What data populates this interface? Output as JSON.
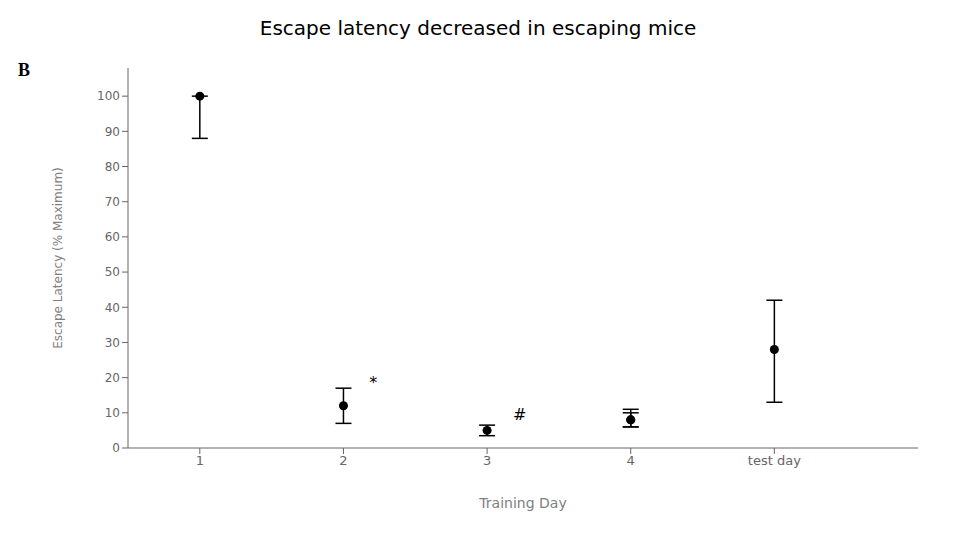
{
  "chart_data": {
    "type": "scatter",
    "title": "Escape latency decreased in escaping mice",
    "panel_label": "B",
    "xlabel": "Training Day",
    "ylabel": "Escape Latency (% Maximum)",
    "series": [
      {
        "color": "#000000",
        "marker": "circle",
        "x": [
          1,
          2,
          3,
          4
        ],
        "values": [
          100,
          12,
          5,
          8
        ],
        "yerr_lower": [
          12,
          5,
          1.5,
          2
        ],
        "yerr_upper": [
          0,
          5,
          1.5,
          3
        ]
      },
      {
        "color": "#000000",
        "marker": "circle",
        "x": [
          4,
          5
        ],
        "values": [
          8,
          28
        ],
        "yerr_lower": [
          2,
          15
        ],
        "yerr_upper": [
          2,
          14
        ]
      }
    ],
    "annotations": [
      {
        "text": "*",
        "x": 2.18,
        "y": 17
      },
      {
        "text": "#",
        "x": 3.18,
        "y": 8
      }
    ],
    "xlim": [
      0.5,
      6.0
    ],
    "ylim": [
      0,
      108
    ],
    "xticks": [
      1,
      2,
      3,
      4,
      {
        "value": 5,
        "label": "test day"
      }
    ],
    "yticks": [
      0,
      10,
      20,
      30,
      40,
      50,
      60,
      70,
      80,
      90,
      100
    ],
    "grid": false
  }
}
